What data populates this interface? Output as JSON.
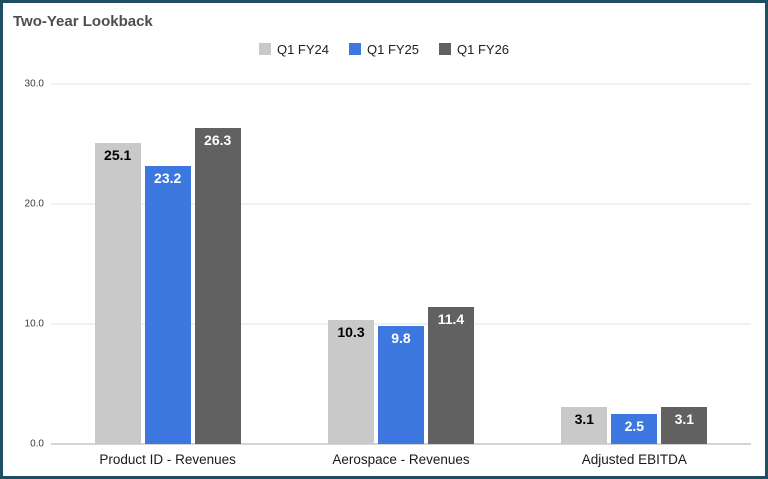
{
  "title": "Two-Year Lookback",
  "colors": {
    "frame_border": "#1d4e62",
    "gridline": "#e3e3e3",
    "axis_line": "#a8a8a8",
    "title_text": "#4d4d4d"
  },
  "chart_data": {
    "type": "bar",
    "title": "Two-Year Lookback",
    "categories": [
      "Product ID - Revenues",
      "Aerospace - Revenues",
      "Adjusted EBITDA"
    ],
    "series": [
      {
        "name": "Q1 FY24",
        "color": "#c9c9c9",
        "label_color": "#000000",
        "values": [
          25.1,
          10.3,
          3.1
        ]
      },
      {
        "name": "Q1 FY25",
        "color": "#3c78e0",
        "label_color": "#ffffff",
        "values": [
          23.2,
          9.8,
          2.5
        ]
      },
      {
        "name": "Q1 FY26",
        "color": "#616161",
        "label_color": "#ffffff",
        "values": [
          26.3,
          11.4,
          3.1
        ]
      }
    ],
    "ylim": [
      0,
      30
    ],
    "yticks": [
      {
        "value": 0,
        "label": "0.0"
      },
      {
        "value": 10,
        "label": "10.0"
      },
      {
        "value": 20,
        "label": "20.0"
      },
      {
        "value": 30,
        "label": "30.0"
      }
    ],
    "grid": true,
    "legend_position": "top",
    "xlabel": "",
    "ylabel": ""
  }
}
